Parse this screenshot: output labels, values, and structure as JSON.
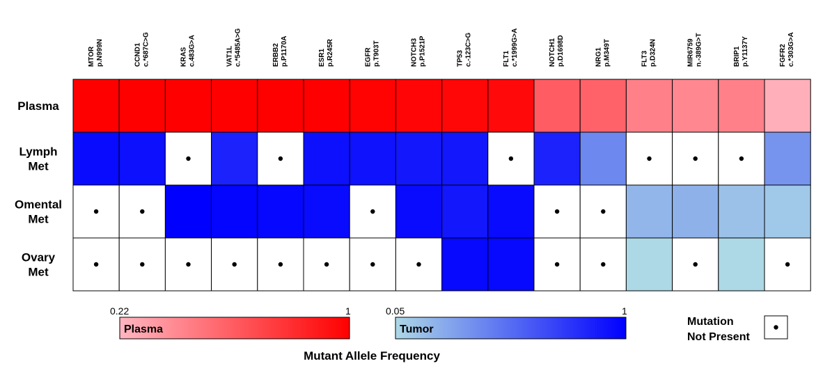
{
  "chart_data": {
    "type": "heatmap",
    "title": "",
    "columns": [
      {
        "gene": "MTOR",
        "variant": "p.N999N"
      },
      {
        "gene": "CCND1",
        "variant": "c.*687C>G"
      },
      {
        "gene": "KRAS",
        "variant": "c.483G>A"
      },
      {
        "gene": "VAT1L",
        "variant": "c.*5485A>G"
      },
      {
        "gene": "ERBB2",
        "variant": "p.P1170A"
      },
      {
        "gene": "ESR1",
        "variant": "p.R245R"
      },
      {
        "gene": "EGFR",
        "variant": "p.T903T"
      },
      {
        "gene": "NOTCH3",
        "variant": "p.P1521P"
      },
      {
        "gene": "TP53",
        "variant": "c.-123C>G"
      },
      {
        "gene": "FLT1",
        "variant": "c.*1999G>A"
      },
      {
        "gene": "NOTCH1",
        "variant": "p.D1698D"
      },
      {
        "gene": "NRG1",
        "variant": "p.M349T"
      },
      {
        "gene": "FLT3",
        "variant": "p.D324N"
      },
      {
        "gene": "MIR6759",
        "variant": "n.-389G>T"
      },
      {
        "gene": "BRIP1",
        "variant": "p.Y1137Y"
      },
      {
        "gene": "FGFR2",
        "variant": "c.*303G>A"
      }
    ],
    "rows": [
      {
        "label": [
          "Plasma"
        ],
        "scale": "plasma",
        "values": [
          1.0,
          1.0,
          1.0,
          1.0,
          1.0,
          1.0,
          0.99,
          0.98,
          0.97,
          0.96,
          0.6,
          0.58,
          0.45,
          0.42,
          0.45,
          0.25
        ]
      },
      {
        "label": [
          "Lymph",
          "Met"
        ],
        "scale": "tumor",
        "values": [
          0.95,
          0.93,
          null,
          0.85,
          null,
          0.93,
          0.92,
          0.9,
          0.9,
          null,
          0.85,
          0.4,
          null,
          null,
          null,
          0.35
        ]
      },
      {
        "label": [
          "Omental",
          "Met"
        ],
        "scale": "tumor",
        "values": [
          null,
          null,
          1.0,
          0.98,
          0.97,
          0.95,
          null,
          0.95,
          0.9,
          0.95,
          null,
          null,
          0.2,
          0.22,
          0.15,
          0.12
        ]
      },
      {
        "label": [
          "Ovary",
          "Met"
        ],
        "scale": "tumor",
        "values": [
          null,
          null,
          null,
          null,
          null,
          null,
          null,
          null,
          0.96,
          0.96,
          null,
          null,
          0.05,
          null,
          0.05,
          null
        ]
      }
    ],
    "scales": {
      "plasma": {
        "name": "Plasma",
        "min": 0.22,
        "max": 1,
        "min_label": "0.22",
        "max_label": "1",
        "color_low": "#ffb6c1",
        "color_high": "#ff0000"
      },
      "tumor": {
        "name": "Tumor",
        "min": 0.05,
        "max": 1,
        "min_label": "0.05",
        "max_label": "1",
        "color_low": "#add8e6",
        "color_high": "#0000ff"
      }
    },
    "axis_title": "Mutant Allele Frequency",
    "missing_legend": [
      "Mutation",
      "Not Present"
    ],
    "missing_color": "#ffffff",
    "grid": true
  }
}
